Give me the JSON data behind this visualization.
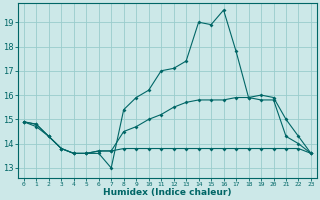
{
  "xlabel": "Humidex (Indice chaleur)",
  "bg_color": "#cce8e8",
  "grid_color": "#99cccc",
  "line_color": "#006666",
  "x_ticks": [
    0,
    1,
    2,
    3,
    4,
    5,
    6,
    7,
    8,
    9,
    10,
    11,
    12,
    13,
    14,
    15,
    16,
    17,
    18,
    19,
    20,
    21,
    22,
    23
  ],
  "x_labels": [
    "0",
    "1",
    "2",
    "3",
    "4",
    "5",
    "6",
    "7",
    "8",
    "9",
    "10",
    "11",
    "12",
    "13",
    "14",
    "15",
    "16",
    "17",
    "18",
    "19",
    "20",
    "21",
    "22",
    "23"
  ],
  "y_ticks": [
    13,
    14,
    15,
    16,
    17,
    18,
    19
  ],
  "ylim": [
    12.6,
    19.8
  ],
  "xlim": [
    -0.5,
    23.5
  ],
  "series": [
    {
      "x": [
        0,
        1,
        2,
        3,
        4,
        5,
        6,
        7,
        8,
        9,
        10,
        11,
        12,
        13,
        14,
        15,
        16,
        17,
        18,
        19,
        20,
        21,
        22,
        23
      ],
      "y": [
        14.9,
        14.8,
        14.3,
        13.8,
        13.6,
        13.6,
        13.6,
        13.0,
        15.4,
        15.9,
        16.2,
        17.0,
        17.1,
        17.4,
        19.0,
        18.9,
        19.5,
        17.8,
        15.9,
        15.8,
        15.8,
        14.3,
        14.0,
        13.6
      ]
    },
    {
      "x": [
        0,
        1,
        2,
        3,
        4,
        5,
        6,
        7,
        8,
        9,
        10,
        11,
        12,
        13,
        14,
        15,
        16,
        17,
        18,
        19,
        20,
        21,
        22,
        23
      ],
      "y": [
        14.9,
        14.7,
        14.3,
        13.8,
        13.6,
        13.6,
        13.7,
        13.7,
        14.5,
        14.7,
        15.0,
        15.2,
        15.5,
        15.7,
        15.8,
        15.8,
        15.8,
        15.9,
        15.9,
        16.0,
        15.9,
        15.0,
        14.3,
        13.6
      ]
    },
    {
      "x": [
        0,
        1,
        2,
        3,
        4,
        5,
        6,
        7,
        8,
        9,
        10,
        11,
        12,
        13,
        14,
        15,
        16,
        17,
        18,
        19,
        20,
        21,
        22,
        23
      ],
      "y": [
        14.9,
        14.8,
        14.3,
        13.8,
        13.6,
        13.6,
        13.7,
        13.7,
        13.8,
        13.8,
        13.8,
        13.8,
        13.8,
        13.8,
        13.8,
        13.8,
        13.8,
        13.8,
        13.8,
        13.8,
        13.8,
        13.8,
        13.8,
        13.6
      ]
    }
  ]
}
